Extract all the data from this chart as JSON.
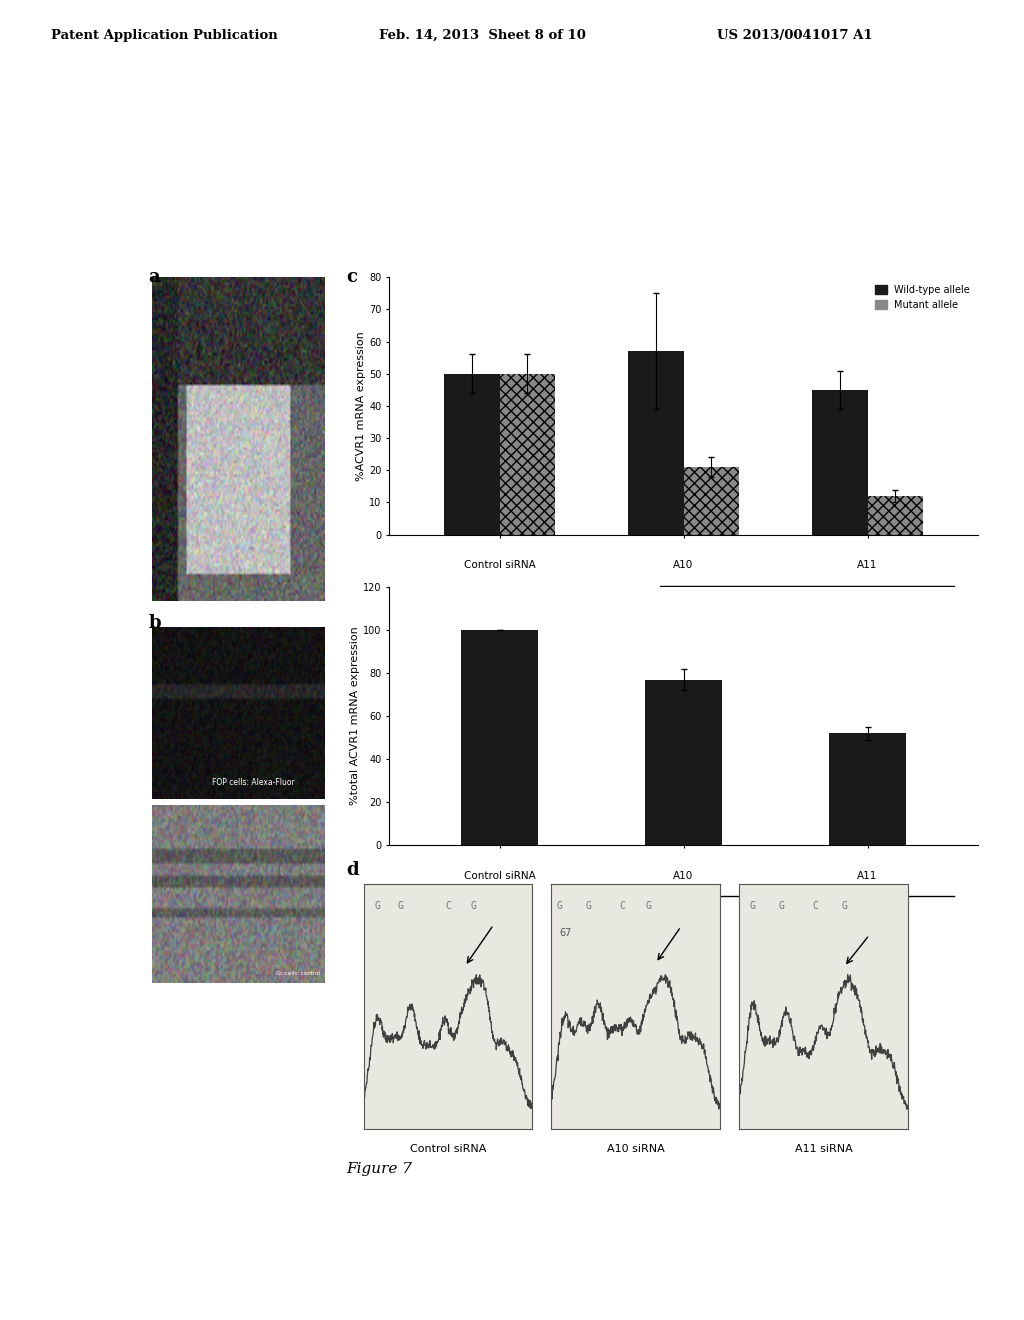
{
  "header_left": "Patent Application Publication",
  "header_mid": "Feb. 14, 2013  Sheet 8 of 10",
  "header_right": "US 2013/0041017 A1",
  "fig_caption": "Figure 7",
  "panel_c_label": "c",
  "panel_d_label": "d",
  "panel_a_label": "a",
  "panel_b_label": "b",
  "chart1_ylabel": "%ACVR1 mRNA expression",
  "chart1_xticks": [
    "Control siRNA",
    "A10",
    "A11"
  ],
  "chart1_ylim": [
    0,
    80
  ],
  "chart1_yticks": [
    0,
    10,
    20,
    30,
    40,
    50,
    60,
    70,
    80
  ],
  "chart1_wild_values": [
    50,
    57,
    45
  ],
  "chart1_mutant_values": [
    50,
    21,
    12
  ],
  "chart1_wild_errors": [
    6,
    18,
    6
  ],
  "chart1_mutant_errors": [
    6,
    3,
    2
  ],
  "chart1_wild_color": "#1a1a1a",
  "chart1_mutant_color": "#888888",
  "chart1_legend_wild": "Wild-type allele",
  "chart1_legend_mutant": "Mutant allele",
  "chart2_ylabel": "%total ACVR1 mRNA expression",
  "chart2_xticks": [
    "Control siRNA",
    "A10",
    "A11"
  ],
  "chart2_ylim": [
    0,
    120
  ],
  "chart2_yticks": [
    0,
    20,
    40,
    60,
    80,
    100,
    120
  ],
  "chart2_values": [
    100,
    77,
    52
  ],
  "chart2_errors": [
    0,
    5,
    3
  ],
  "chart2_bar_color": "#1a1a1a",
  "panel_d_labels": [
    "Control siRNA",
    "A10 siRNA",
    "A11 siRNA"
  ],
  "background_color": "#ffffff",
  "text_color": "#000000",
  "bar_width": 0.3
}
